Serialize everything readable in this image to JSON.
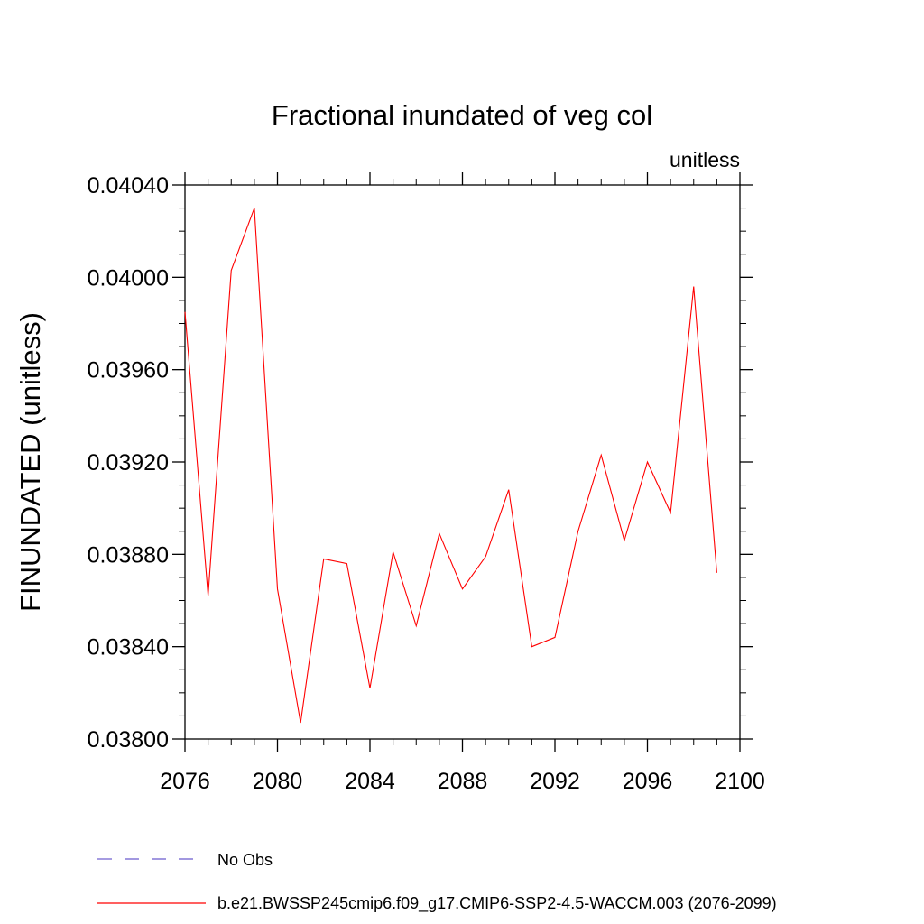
{
  "chart_data": {
    "type": "line",
    "title": "Fractional inundated of veg col",
    "units_label": "unitless",
    "ylabel": "FINUNDATED  (unitless)",
    "xlabel": "",
    "xlim": [
      2076,
      2100
    ],
    "ylim": [
      0.038,
      0.0404
    ],
    "x_ticks": [
      2076,
      2080,
      2084,
      2088,
      2092,
      2096,
      2100
    ],
    "x_tick_labels": [
      "2076",
      "2080",
      "2084",
      "2088",
      "2092",
      "2096",
      "2100"
    ],
    "y_ticks": [
      0.038,
      0.0384,
      0.0388,
      0.0392,
      0.0396,
      0.04,
      0.0404
    ],
    "y_tick_labels": [
      "0.03800",
      "0.03840",
      "0.03880",
      "0.03920",
      "0.03960",
      "0.04000",
      "0.04040"
    ],
    "grid": false,
    "legend_position": "bottom",
    "colors": {
      "series": "#ff0000",
      "obs": "#6a5acd",
      "axis": "#000000"
    },
    "legend": [
      {
        "name": "No Obs",
        "style": "dashed"
      },
      {
        "name": "b.e21.BWSSP245cmip6.f09_g17.CMIP6-SSP2-4.5-WACCM.003 (2076-2099)",
        "style": "solid"
      }
    ],
    "series": [
      {
        "name": "b.e21.BWSSP245cmip6.f09_g17.CMIP6-SSP2-4.5-WACCM.003 (2076-2099)",
        "x": [
          2076,
          2077,
          2078,
          2079,
          2080,
          2081,
          2082,
          2083,
          2084,
          2085,
          2086,
          2087,
          2088,
          2089,
          2090,
          2091,
          2092,
          2093,
          2094,
          2095,
          2096,
          2097,
          2098,
          2099
        ],
        "y": [
          0.03985,
          0.03862,
          0.04003,
          0.0403,
          0.03865,
          0.03807,
          0.03878,
          0.03876,
          0.03822,
          0.03881,
          0.03849,
          0.03889,
          0.03865,
          0.03879,
          0.03908,
          0.0384,
          0.03844,
          0.0389,
          0.03923,
          0.03886,
          0.0392,
          0.03898,
          0.03996,
          0.03872
        ]
      }
    ]
  }
}
